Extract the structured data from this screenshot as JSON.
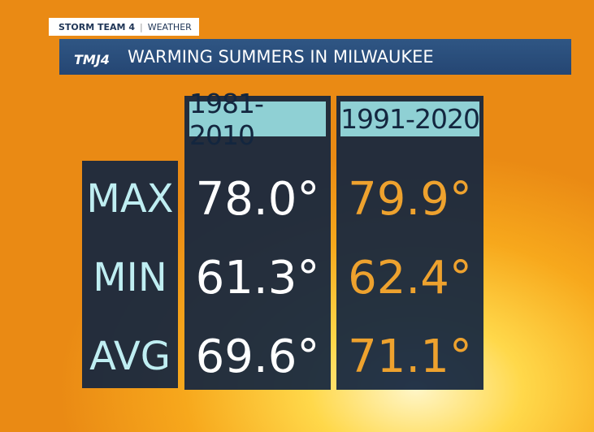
{
  "header": {
    "tag": "STORM TEAM 4",
    "tag_section": "WEATHER",
    "logo": "TMJ4",
    "title": "WARMING SUMMERS IN MILWAUKEE"
  },
  "table": {
    "columns": [
      "1981-2010",
      "1991-2020"
    ],
    "rows": [
      [
        "MAX",
        "78.0°",
        "79.9°"
      ],
      [
        "MIN",
        "61.3°",
        "62.4°"
      ],
      [
        "AVG",
        "69.6°",
        "71.1°"
      ]
    ]
  }
}
